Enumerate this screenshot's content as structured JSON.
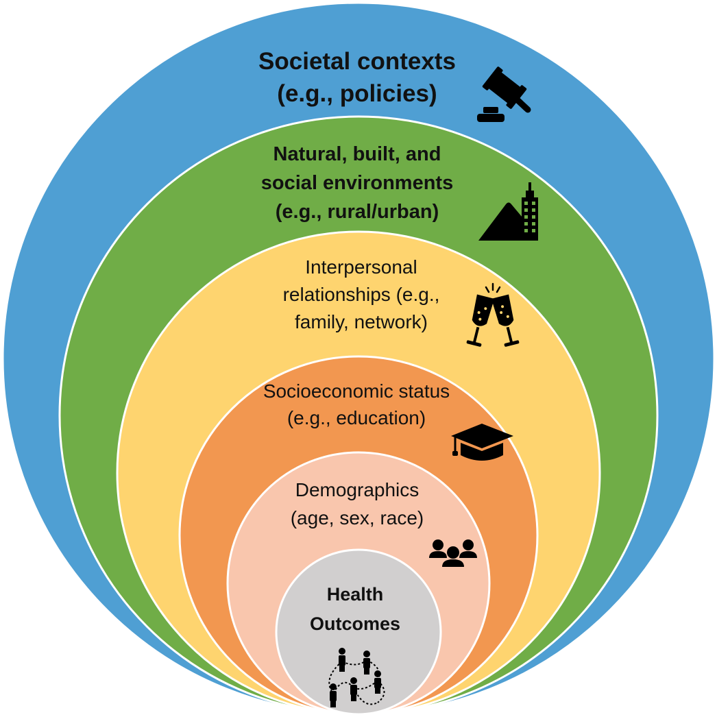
{
  "layers": [
    {
      "id": "societal",
      "lines": [
        "Societal contexts",
        "(e.g., policies)"
      ],
      "bold": true,
      "color": "#4f9fd3",
      "icon": "gavel-icon"
    },
    {
      "id": "environments",
      "lines": [
        "Natural, built, and",
        "social environments",
        "(e.g., rural/urban)"
      ],
      "bold": true,
      "color": "#70ad47",
      "icon": "city-icon"
    },
    {
      "id": "interpersonal",
      "lines": [
        "Interpersonal",
        "relationships (e.g.,",
        "family, network)"
      ],
      "bold": false,
      "color": "#fed46f",
      "icon": "champagne-toast-icon"
    },
    {
      "id": "ses",
      "lines": [
        "Socioeconomic status",
        "(e.g., education)"
      ],
      "bold": false,
      "color": "#f29750",
      "icon": "graduation-cap-icon"
    },
    {
      "id": "demographics",
      "lines": [
        "Demographics",
        "(age, sex, race)"
      ],
      "bold": false,
      "color": "#f9c6ad",
      "icon": "group-icon"
    },
    {
      "id": "health",
      "lines": [
        "Health",
        "Outcomes"
      ],
      "bold": true,
      "color": "#d1cfcf",
      "icon": "connected-people-icon"
    }
  ]
}
